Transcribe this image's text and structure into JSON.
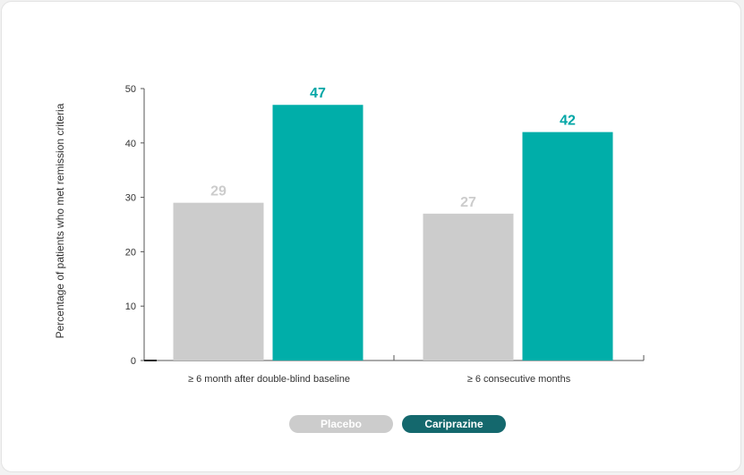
{
  "chart_data": {
    "type": "bar",
    "title": "",
    "ylabel": "Percentage of patients who met remission criteria",
    "xlabel": "",
    "ylim": [
      0,
      50
    ],
    "yticks": [
      0,
      10,
      20,
      30,
      40,
      50
    ],
    "categories": [
      "≥ 6 month after double-blind baseline",
      "≥ 6 consecutive months"
    ],
    "series": [
      {
        "name": "Placebo",
        "values": [
          29,
          27
        ],
        "color": "#cccccc",
        "label_color": "#cccccc"
      },
      {
        "name": "Cariprazine",
        "values": [
          47,
          42
        ],
        "color": "#00aea9",
        "label_color": "#00a6a6"
      }
    ],
    "legend": {
      "placement": "bottom-center",
      "items": [
        {
          "label": "Placebo",
          "color": "#cccccc"
        },
        {
          "label": "Cariprazine",
          "color": "#14686d"
        }
      ]
    },
    "grid": false
  }
}
